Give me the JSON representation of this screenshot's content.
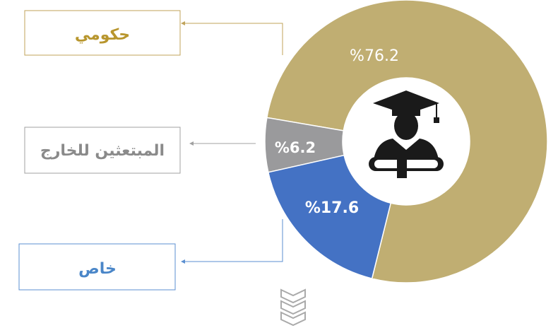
{
  "chart_data": {
    "type": "donut",
    "categories": [
      "حكومي",
      "المبتعثين للخارج",
      "خاص"
    ],
    "values": [
      76.2,
      6.2,
      17.6
    ],
    "value_labels": [
      "%76.2",
      "%6.2",
      "%17.6"
    ],
    "colors": [
      "#c0ae72",
      "#9a9a9c",
      "#4472c4"
    ]
  }
}
